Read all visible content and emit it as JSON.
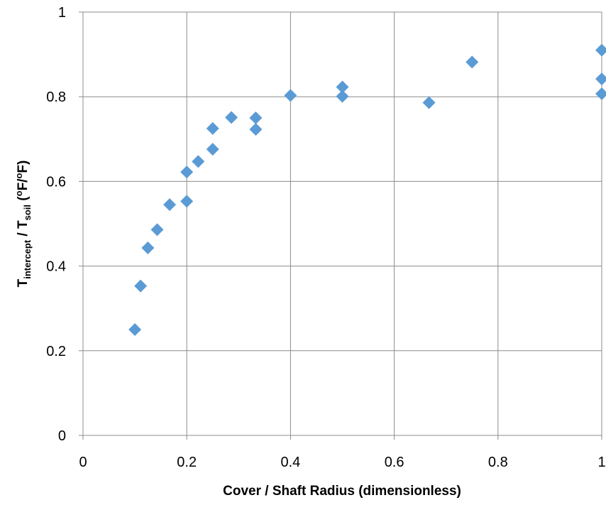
{
  "chart_data": {
    "type": "scatter",
    "xlabel": "Cover / Shaft Radius (dimensionless)",
    "ylabel_parts": {
      "t1": "T",
      "sub1": "intercept",
      "mid": " / T",
      "sub2": "soil",
      "unit_open": " (",
      "sup1": "o",
      "unit_mid": "F/",
      "sup2": "o",
      "unit_close": "F)"
    },
    "xlim": [
      0,
      1
    ],
    "ylim": [
      0,
      1
    ],
    "xticks": [
      0,
      0.2,
      0.4,
      0.6,
      0.8,
      1
    ],
    "yticks": [
      0,
      0.2,
      0.4,
      0.6,
      0.8,
      1
    ],
    "xtick_labels": [
      "0",
      "0.2",
      "0.4",
      "0.6",
      "0.8",
      "1"
    ],
    "ytick_labels": [
      "0",
      "0.2",
      "0.4",
      "0.6",
      "0.8",
      "1"
    ],
    "grid": true,
    "marker": "diamond",
    "marker_color": "#5b9bd5",
    "series": [
      {
        "points": [
          [
            0.1,
            0.25
          ],
          [
            0.111,
            0.353
          ],
          [
            0.125,
            0.443
          ],
          [
            0.143,
            0.486
          ],
          [
            0.167,
            0.545
          ],
          [
            0.2,
            0.553
          ],
          [
            0.2,
            0.622
          ],
          [
            0.222,
            0.647
          ],
          [
            0.25,
            0.676
          ],
          [
            0.25,
            0.725
          ],
          [
            0.286,
            0.751
          ],
          [
            0.333,
            0.75
          ],
          [
            0.333,
            0.723
          ],
          [
            0.4,
            0.803
          ],
          [
            0.5,
            0.823
          ],
          [
            0.5,
            0.801
          ],
          [
            0.667,
            0.786
          ],
          [
            0.75,
            0.882
          ],
          [
            1.0,
            0.91
          ],
          [
            1.0,
            0.842
          ],
          [
            1.0,
            0.807
          ]
        ]
      }
    ]
  }
}
